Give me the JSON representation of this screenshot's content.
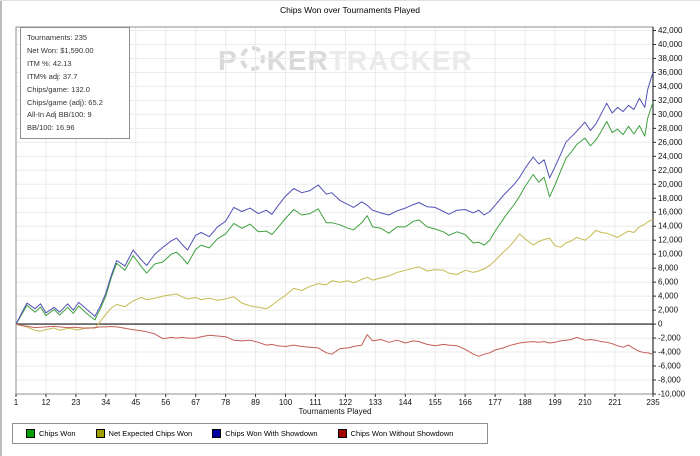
{
  "window": {
    "title": "Chips Won over Tournaments Played"
  },
  "stats_box": {
    "lines": [
      "Tournaments: 235",
      "Net Won: $1,590.00",
      "ITM %: 42.13",
      "ITM% adj: 37.7",
      "Chips/game: 132.0",
      "Chips/game (adj): 65.2",
      "All-In Adj BB/100: 9",
      "BB/100: 16.96"
    ]
  },
  "watermark": {
    "part1": "P",
    "part2": "KER",
    "part3": "TRACKER"
  },
  "chart_data": {
    "type": "line",
    "title": "Chips Won over Tournaments Played",
    "xlabel": "Tournaments Played",
    "ylabel": "",
    "grid": true,
    "legend_position": "bottom",
    "xlim": [
      1,
      235
    ],
    "ylim": [
      -10000,
      42500
    ],
    "x_ticks": [
      1,
      12,
      23,
      34,
      45,
      56,
      67,
      78,
      89,
      100,
      111,
      122,
      133,
      144,
      155,
      166,
      177,
      188,
      199,
      210,
      221,
      235
    ],
    "y_ticks": [
      42000,
      40000,
      38000,
      36000,
      34000,
      32000,
      30000,
      28000,
      26000,
      24000,
      22000,
      20000,
      18000,
      16000,
      14000,
      12000,
      10000,
      8000,
      6000,
      4000,
      2000,
      0,
      -2000,
      -4000,
      -6000,
      -8000,
      -10000
    ],
    "x": [
      1,
      3,
      5,
      8,
      10,
      12,
      15,
      17,
      20,
      22,
      24,
      27,
      30,
      32,
      34,
      36,
      38,
      41,
      44,
      47,
      49,
      52,
      55,
      58,
      60,
      62,
      64,
      67,
      69,
      72,
      75,
      78,
      81,
      84,
      87,
      90,
      93,
      95,
      97,
      100,
      103,
      106,
      109,
      112,
      115,
      117,
      120,
      123,
      125,
      128,
      130,
      132,
      135,
      138,
      141,
      144,
      147,
      149,
      152,
      155,
      158,
      160,
      163,
      166,
      169,
      171,
      173,
      175,
      177,
      180,
      182,
      184,
      186,
      188,
      191,
      193,
      195,
      197,
      199,
      201,
      203,
      205,
      207,
      210,
      212,
      214,
      216,
      218,
      220,
      222,
      224,
      226,
      228,
      230,
      232,
      233,
      234,
      235
    ],
    "series": [
      {
        "name": "Chips Won",
        "color": "#3fa13f",
        "swatch": "#00a000",
        "values": [
          0,
          1300,
          2700,
          1700,
          2450,
          1200,
          2100,
          1300,
          2400,
          1550,
          2600,
          1500,
          600,
          2200,
          4000,
          6650,
          8700,
          7700,
          9800,
          8250,
          7300,
          8600,
          8900,
          10000,
          10300,
          9500,
          8600,
          10700,
          11300,
          10900,
          12200,
          12900,
          14400,
          13700,
          14300,
          13200,
          13300,
          12800,
          13700,
          15100,
          16400,
          15600,
          15800,
          16500,
          14500,
          14500,
          14200,
          13700,
          13500,
          14500,
          15500,
          13900,
          13700,
          13000,
          13900,
          13900,
          14700,
          14900,
          13900,
          13600,
          13200,
          12700,
          13200,
          12800,
          11600,
          11700,
          11300,
          12000,
          13300,
          15000,
          16100,
          17100,
          18300,
          19700,
          21400,
          20300,
          21000,
          18200,
          19900,
          21800,
          23700,
          24600,
          25700,
          26600,
          25500,
          26300,
          27600,
          29000,
          27400,
          27900,
          27100,
          28300,
          27200,
          28400,
          26900,
          29400,
          30600,
          31700
        ]
      },
      {
        "name": "Net Expected Chips Won",
        "color": "#c7bb52",
        "swatch": "#a0a000",
        "values": [
          0,
          -200,
          -400,
          -900,
          -1000,
          -800,
          -550,
          -900,
          -600,
          -700,
          -850,
          -500,
          -600,
          400,
          1400,
          2300,
          2800,
          2500,
          3300,
          3800,
          3500,
          3700,
          4000,
          4200,
          4300,
          3900,
          3600,
          3800,
          3500,
          3700,
          3400,
          3600,
          3900,
          3000,
          2600,
          2400,
          2200,
          2700,
          3300,
          4100,
          5100,
          4800,
          5400,
          5800,
          5600,
          6200,
          6000,
          6200,
          5900,
          6400,
          6700,
          6300,
          6600,
          6900,
          7400,
          7700,
          8000,
          8200,
          7600,
          7800,
          7700,
          7300,
          7100,
          7700,
          7400,
          7600,
          7900,
          8400,
          9100,
          10300,
          11000,
          11900,
          12900,
          12200,
          11300,
          11800,
          12100,
          12300,
          11200,
          11000,
          11600,
          11900,
          12400,
          12000,
          12600,
          13400,
          13100,
          13000,
          12700,
          12400,
          12900,
          13300,
          13100,
          13900,
          14300,
          14600,
          14800,
          15000
        ]
      },
      {
        "name": "Chips Won With Showdown",
        "color": "#5151b8",
        "swatch": "#0000a0",
        "values": [
          0,
          1500,
          3000,
          2200,
          2900,
          1600,
          2400,
          1700,
          2900,
          2000,
          3100,
          2100,
          1100,
          2600,
          4400,
          7000,
          9100,
          8300,
          10600,
          9200,
          8400,
          10000,
          11000,
          11900,
          12300,
          11400,
          10600,
          12700,
          13100,
          12500,
          13900,
          14700,
          16700,
          16100,
          16600,
          15800,
          16300,
          15700,
          16800,
          18300,
          19400,
          18800,
          19100,
          19900,
          18600,
          18800,
          17700,
          17100,
          16700,
          17500,
          17000,
          16300,
          15900,
          15600,
          16200,
          16600,
          17100,
          17400,
          16800,
          16700,
          16100,
          15700,
          16300,
          16400,
          15900,
          16300,
          15600,
          16100,
          17000,
          18400,
          19200,
          20000,
          21000,
          22300,
          23900,
          22900,
          23500,
          20900,
          22500,
          24200,
          26000,
          26800,
          27600,
          28900,
          27700,
          28600,
          30100,
          31600,
          30200,
          31000,
          30400,
          31300,
          30700,
          32300,
          31000,
          33500,
          34800,
          36000
        ]
      },
      {
        "name": "Chips Won Without Showdown",
        "color": "#c45f58",
        "swatch": "#a00000",
        "values": [
          0,
          -200,
          -300,
          -500,
          -450,
          -400,
          -300,
          -400,
          -500,
          -450,
          -500,
          -600,
          -500,
          -400,
          -400,
          -350,
          -400,
          -600,
          -800,
          -950,
          -1100,
          -1400,
          -2100,
          -1900,
          -2000,
          -1900,
          -2000,
          -2000,
          -1800,
          -1600,
          -1700,
          -1800,
          -2300,
          -2400,
          -2300,
          -2600,
          -3000,
          -2900,
          -3100,
          -3200,
          -3000,
          -3200,
          -3300,
          -3400,
          -4100,
          -4300,
          -3500,
          -3400,
          -3200,
          -3000,
          -1500,
          -2400,
          -2200,
          -2600,
          -2300,
          -2700,
          -2400,
          -2500,
          -2900,
          -3100,
          -2900,
          -3000,
          -3100,
          -3600,
          -4300,
          -4600,
          -4300,
          -4100,
          -3700,
          -3400,
          -3100,
          -2900,
          -2700,
          -2600,
          -2500,
          -2600,
          -2500,
          -2700,
          -2600,
          -2400,
          -2300,
          -2200,
          -1900,
          -2300,
          -2200,
          -2300,
          -2500,
          -2600,
          -2800,
          -3100,
          -3300,
          -3000,
          -3500,
          -3900,
          -4100,
          -4100,
          -4200,
          -4300
        ]
      }
    ]
  }
}
